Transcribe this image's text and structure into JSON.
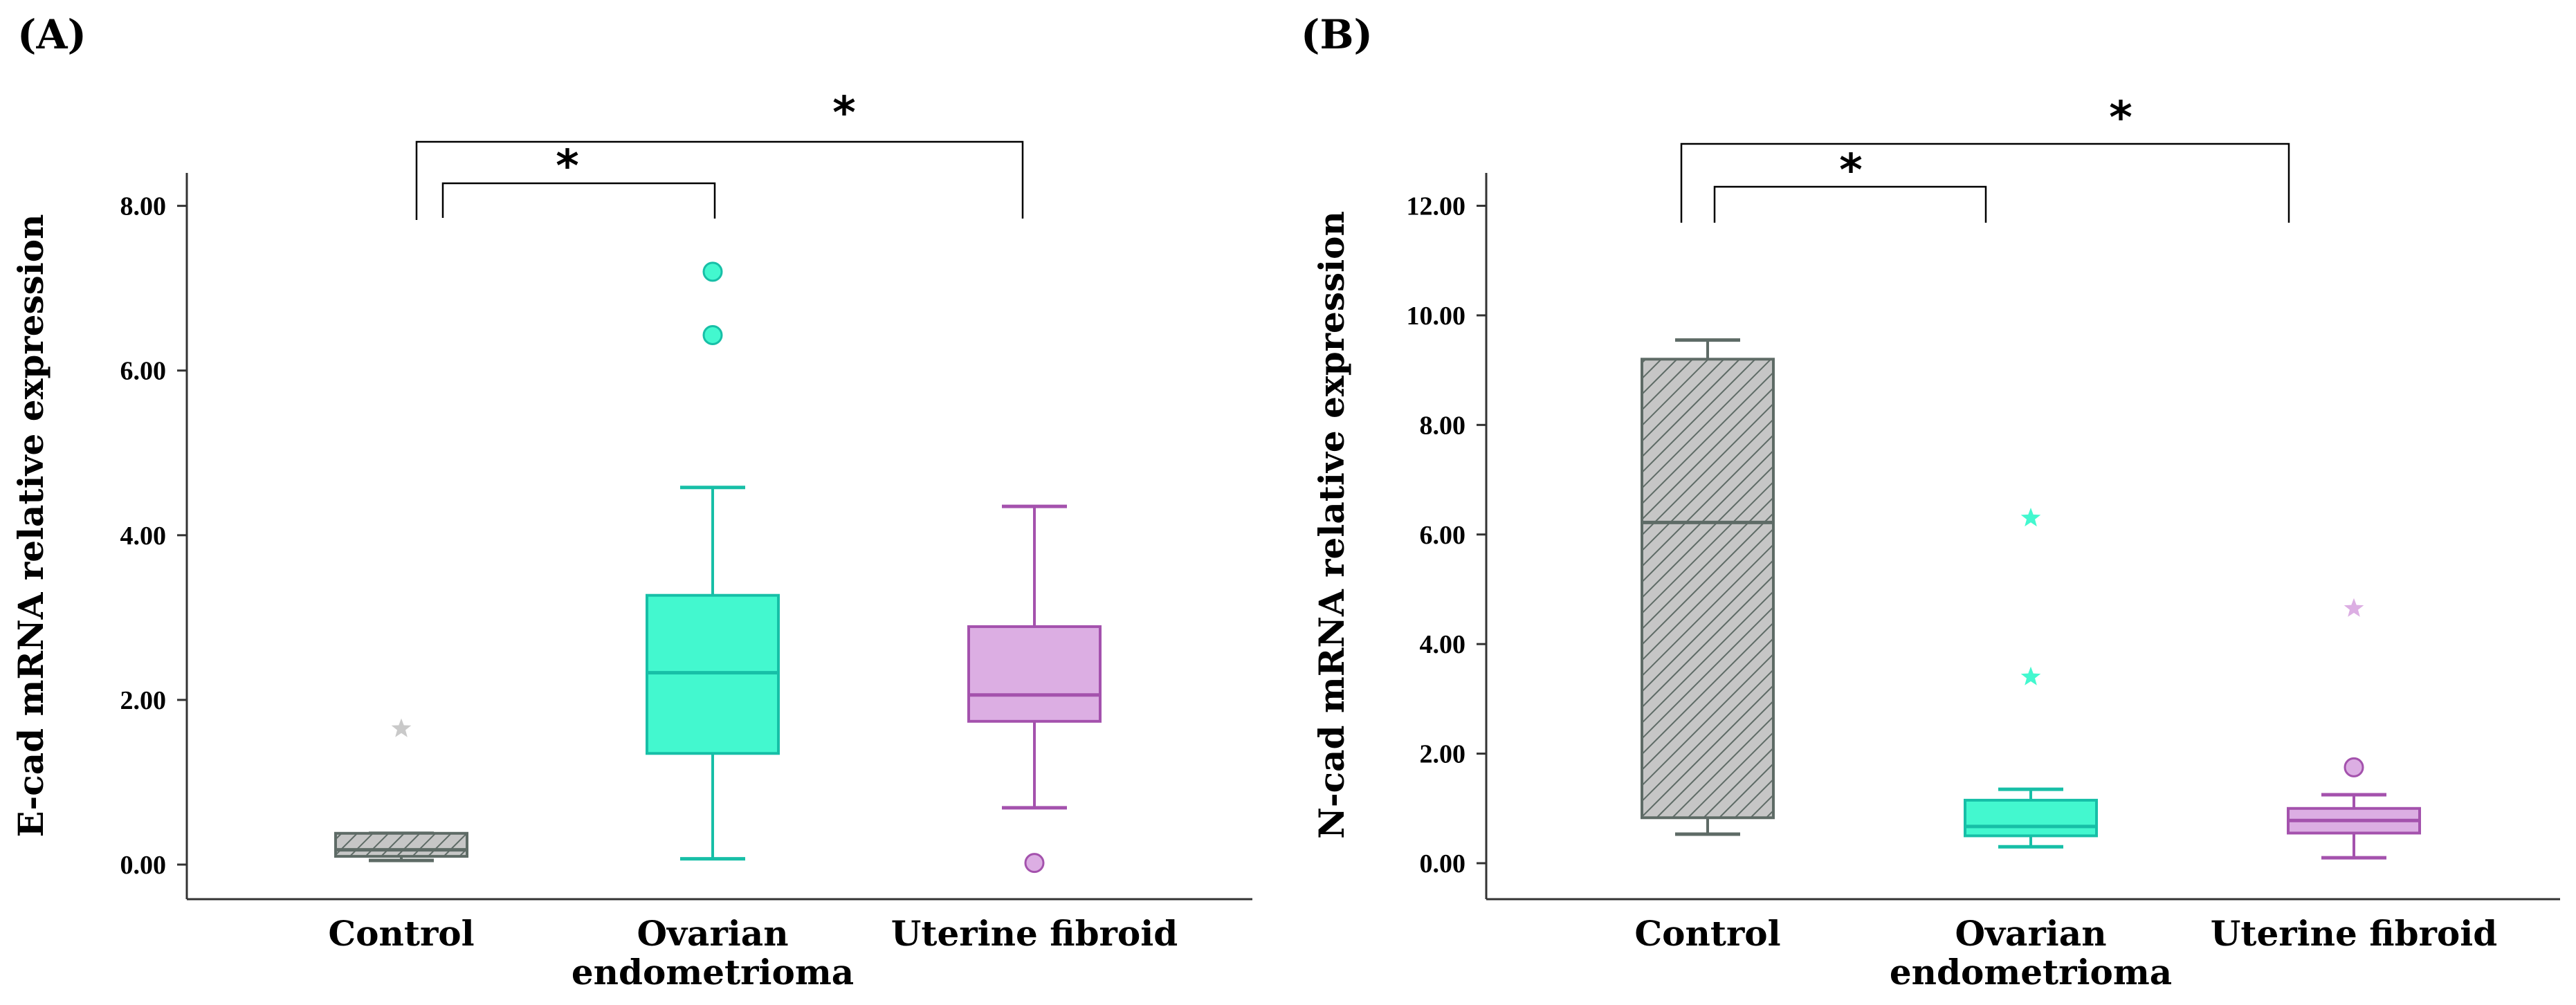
{
  "colors": {
    "control_fill": "#c6c6c6",
    "control_stroke": "#5e6b66",
    "endometrioma_fill": "#43f8cf",
    "endometrioma_stroke": "#17bfa7",
    "fibroid_fill": "#dcaee3",
    "fibroid_stroke": "#a452ad",
    "control_outlier": "#c9c9c9"
  },
  "chart_data": [
    {
      "type": "box",
      "panel_label": "(A)",
      "title": "",
      "xlabel": "",
      "ylabel": "E-cad mRNA relative expression",
      "ylim": [
        0,
        8.4
      ],
      "yticks": [
        "0.00",
        "2.00",
        "4.00",
        "6.00",
        "8.00"
      ],
      "ytick_values": [
        0,
        2,
        4,
        6,
        8
      ],
      "categories": [
        "Control",
        "Ovarian endometrioma",
        "Uterine fibroid"
      ],
      "category_lines": [
        [
          "Control"
        ],
        [
          "Ovarian",
          "endometrioma"
        ],
        [
          "Uterine fibroid"
        ]
      ],
      "boxes": [
        {
          "group": "Control",
          "min": 0.05,
          "q1": 0.1,
          "median": 0.18,
          "q3": 0.38,
          "max": 0.38,
          "hatched": true,
          "outliers": [
            {
              "value": 1.65,
              "marker": "star"
            }
          ]
        },
        {
          "group": "Ovarian endometrioma",
          "min": 0.07,
          "q1": 1.35,
          "median": 2.33,
          "q3": 3.27,
          "max": 4.58,
          "hatched": false,
          "outliers": [
            {
              "value": 6.43,
              "marker": "circle"
            },
            {
              "value": 7.2,
              "marker": "circle"
            }
          ]
        },
        {
          "group": "Uterine fibroid",
          "min": 0.69,
          "q1": 1.74,
          "median": 2.06,
          "q3": 2.89,
          "max": 4.35,
          "hatched": false,
          "outliers": [
            {
              "value": 0.02,
              "marker": "circle"
            }
          ]
        }
      ],
      "significance": [
        {
          "from": "Control",
          "to": "Ovarian endometrioma",
          "label": "*"
        },
        {
          "from": "Control",
          "to": "Uterine fibroid",
          "label": "*"
        }
      ]
    },
    {
      "type": "box",
      "panel_label": "(B)",
      "title": "",
      "xlabel": "",
      "ylabel": "N-cad mRNA relative expression",
      "ylim": [
        0,
        12.6
      ],
      "yticks": [
        "0.00",
        "2.00",
        "4.00",
        "6.00",
        "8.00",
        "10.00",
        "12.00"
      ],
      "ytick_values": [
        0,
        2,
        4,
        6,
        8,
        10,
        12
      ],
      "categories": [
        "Control",
        "Ovarian endometrioma",
        "Uterine fibroid"
      ],
      "category_lines": [
        [
          "Control"
        ],
        [
          "Ovarian",
          "endometrioma"
        ],
        [
          "Uterine fibroid"
        ]
      ],
      "boxes": [
        {
          "group": "Control",
          "min": 0.53,
          "q1": 0.83,
          "median": 6.22,
          "q3": 9.2,
          "max": 9.55,
          "hatched": true,
          "outliers": []
        },
        {
          "group": "Ovarian endometrioma",
          "min": 0.3,
          "q1": 0.5,
          "median": 0.67,
          "q3": 1.15,
          "max": 1.35,
          "hatched": false,
          "outliers": [
            {
              "value": 3.4,
              "marker": "star"
            },
            {
              "value": 6.3,
              "marker": "star"
            }
          ]
        },
        {
          "group": "Uterine fibroid",
          "min": 0.1,
          "q1": 0.55,
          "median": 0.78,
          "q3": 1.0,
          "max": 1.25,
          "hatched": false,
          "outliers": [
            {
              "value": 1.75,
              "marker": "circle"
            },
            {
              "value": 4.65,
              "marker": "star"
            }
          ]
        }
      ],
      "significance": [
        {
          "from": "Control",
          "to": "Ovarian endometrioma",
          "label": "*"
        },
        {
          "from": "Control",
          "to": "Uterine fibroid",
          "label": "*"
        }
      ]
    }
  ]
}
